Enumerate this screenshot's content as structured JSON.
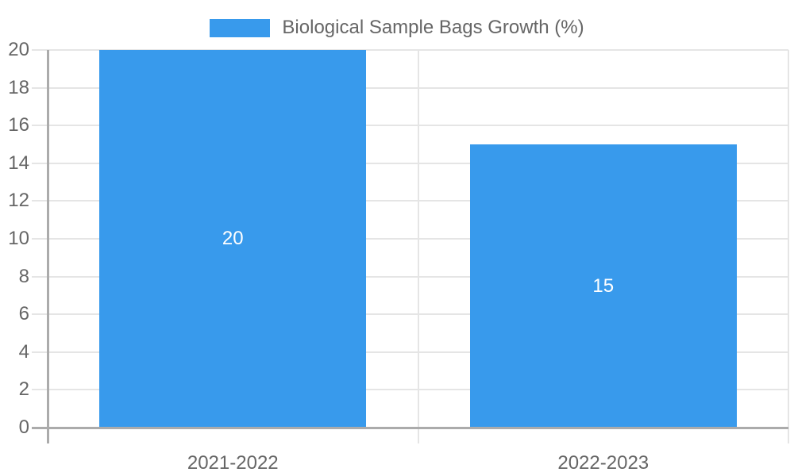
{
  "chart_data": {
    "type": "bar",
    "title": "Biological Sample Bags Growth (%)",
    "categories": [
      "2021-2022",
      "2022-2023"
    ],
    "values": [
      20,
      15
    ],
    "bar_value_labels": [
      "20",
      "15"
    ],
    "y_tick_labels": [
      "0",
      "2",
      "4",
      "6",
      "8",
      "10",
      "12",
      "14",
      "16",
      "18",
      "20"
    ],
    "xlabel": "",
    "ylabel": "",
    "ylim": [
      0,
      20
    ],
    "ytick_step": 2,
    "grid": true,
    "legend_position": "top-center"
  },
  "colors": {
    "bar": "#389AEC",
    "text": "#666666",
    "grid": "#E5E5E5",
    "axis": "#ABABAB",
    "bar_label": "#FFFFFF",
    "background": "#FFFFFF"
  }
}
